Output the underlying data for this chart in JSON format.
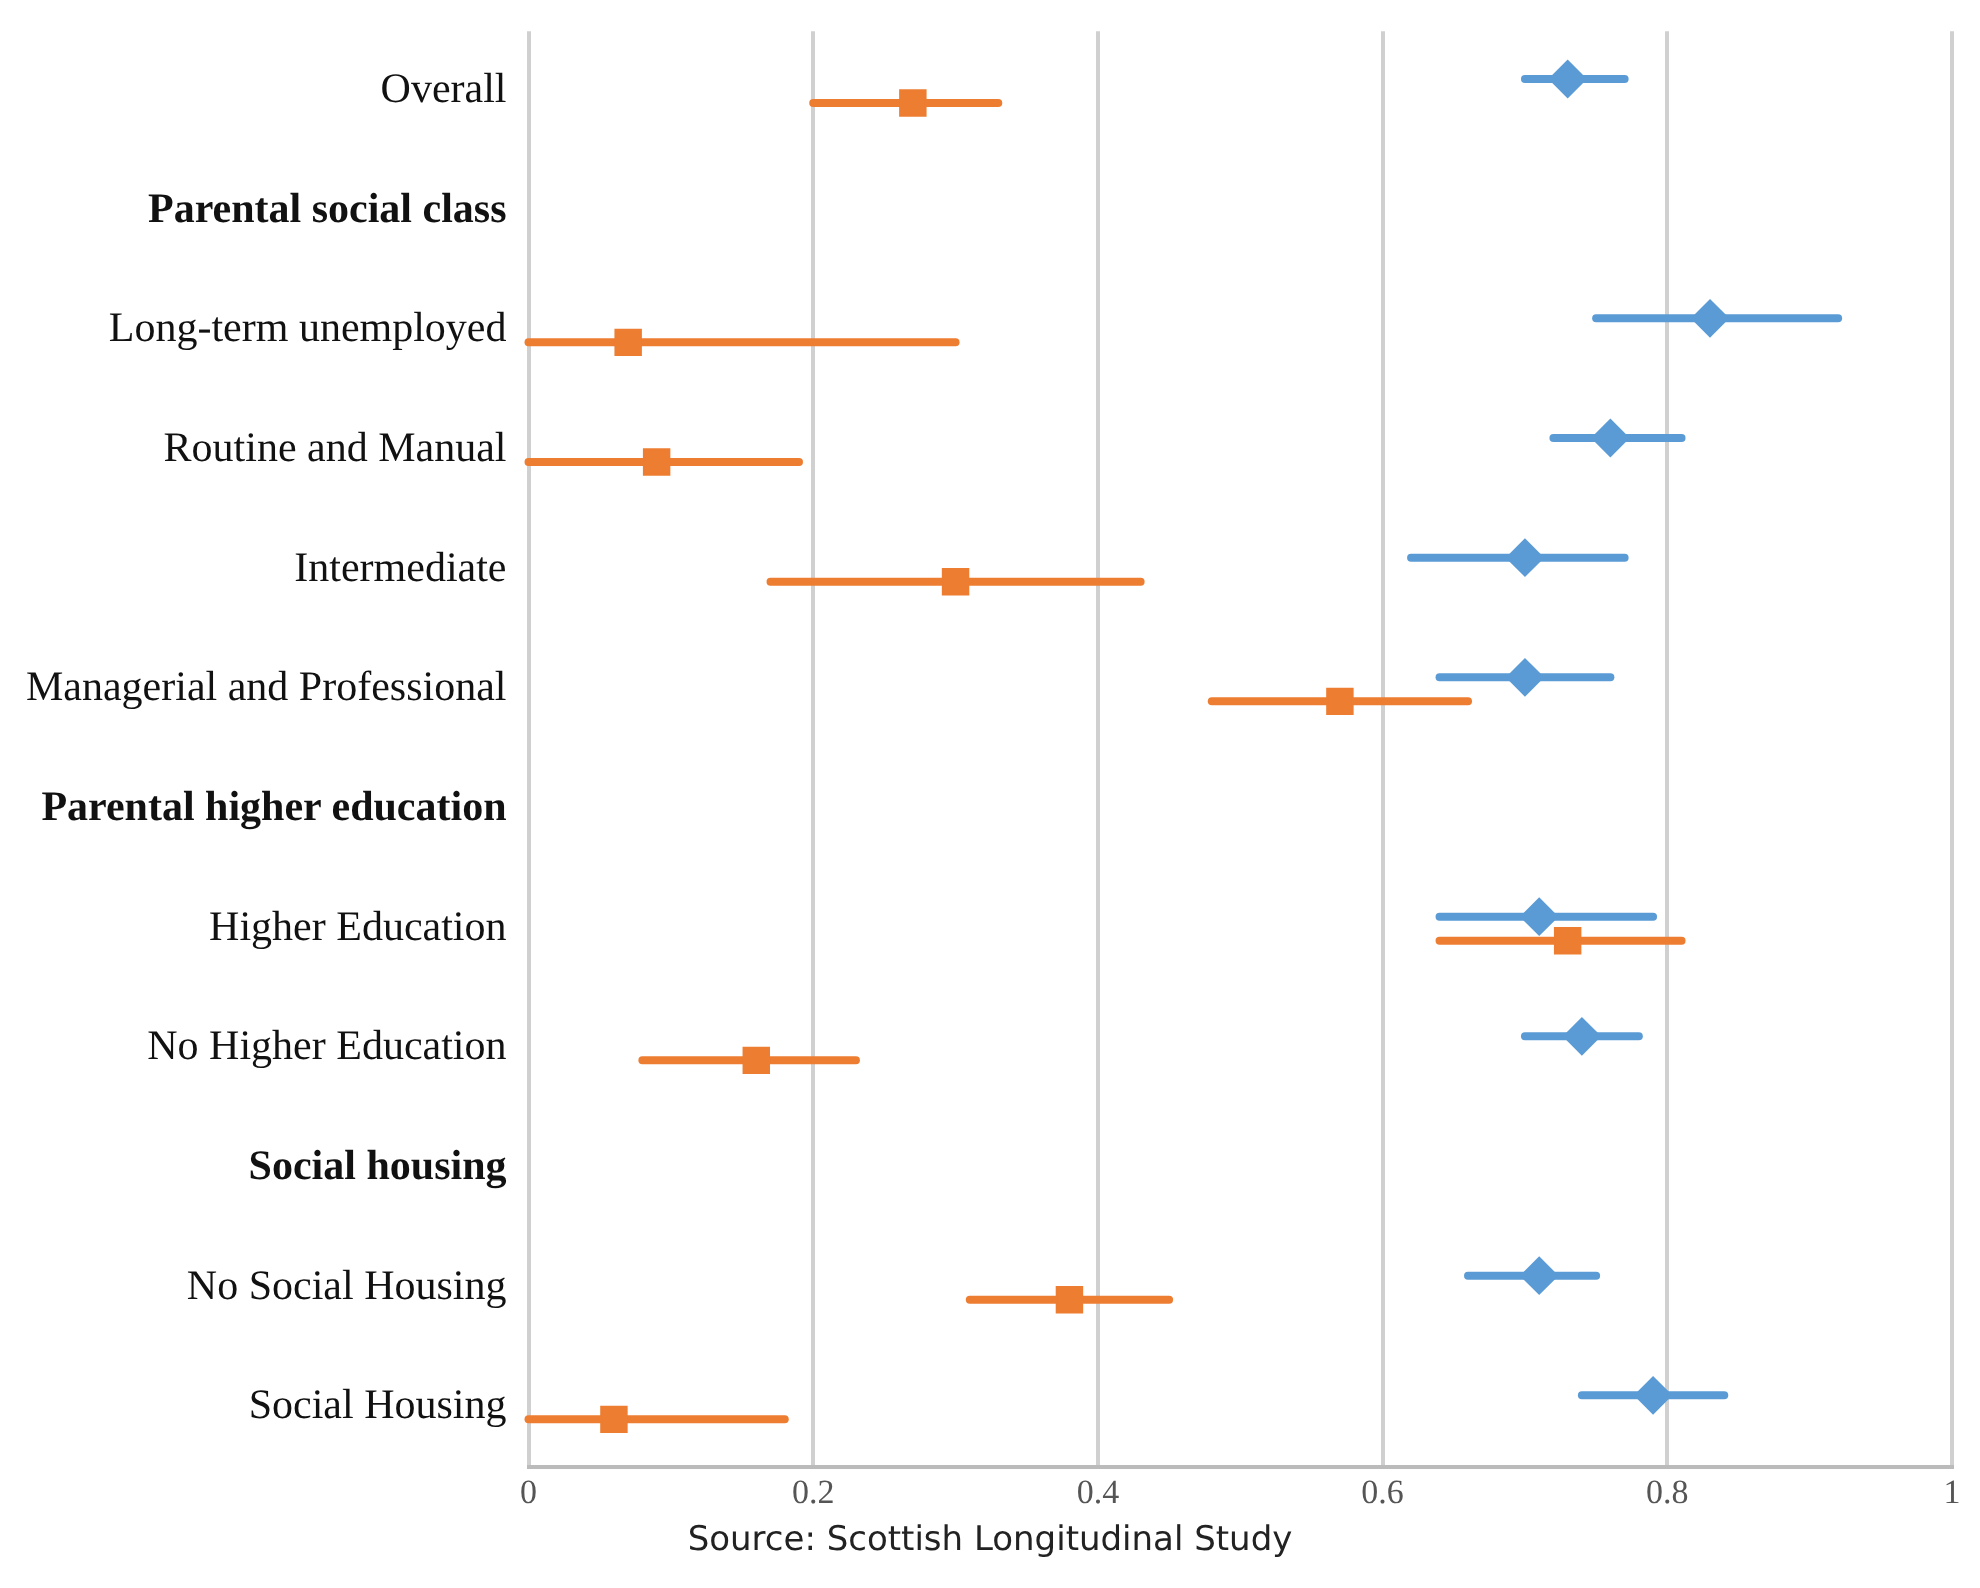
{
  "chart_data": {
    "type": "scatter",
    "orientation": "horizontal",
    "categories": [
      "Overall",
      "Parental social class",
      "Long-term unemployed",
      "Routine and Manual",
      "Intermediate",
      "Managerial and Professional",
      "Parental higher education",
      "Higher Education",
      "No Higher Education",
      "Social housing",
      "No Social Housing",
      "Social Housing"
    ],
    "series": [
      {
        "color": "#5b9bd5",
        "marker": "diamond",
        "values": [
          0.73,
          null,
          0.83,
          0.76,
          0.7,
          0.7,
          null,
          0.71,
          0.74,
          null,
          0.71,
          0.79
        ],
        "errors": [
          [
            0.7,
            0.77
          ],
          null,
          [
            0.75,
            0.92
          ],
          [
            0.72,
            0.81
          ],
          [
            0.62,
            0.77
          ],
          [
            0.64,
            0.76
          ],
          null,
          [
            0.64,
            0.79
          ],
          [
            0.7,
            0.78
          ],
          null,
          [
            0.66,
            0.75
          ],
          [
            0.74,
            0.84
          ]
        ]
      },
      {
        "color": "#ed7d31",
        "marker": "square",
        "values": [
          0.27,
          null,
          0.07,
          0.09,
          0.3,
          0.57,
          null,
          0.73,
          0.16,
          null,
          0.38,
          0.06
        ],
        "errors": [
          [
            0.2,
            0.33
          ],
          null,
          [
            0,
            0.3
          ],
          [
            0,
            0.19
          ],
          [
            0.17,
            0.43
          ],
          [
            0.48,
            0.66
          ],
          null,
          [
            0.64,
            0.81
          ],
          [
            0.08,
            0.23
          ],
          null,
          [
            0.31,
            0.45
          ],
          [
            0,
            0.18
          ]
        ]
      }
    ],
    "xlim": [
      0,
      1
    ],
    "xticks": [
      0,
      0.2,
      0.4,
      0.6,
      0.8,
      1
    ],
    "grid": "x",
    "legend": false,
    "annotations": [
      "Source: Scottish Longitudinal Study"
    ]
  }
}
